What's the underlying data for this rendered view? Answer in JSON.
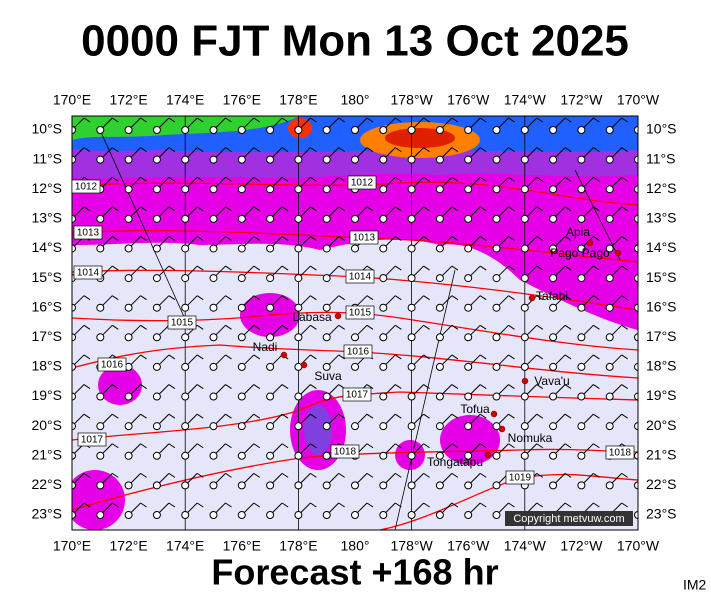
{
  "header": {
    "title": "0000 FJT Mon 13 Oct 2025"
  },
  "longitude_labels": [
    "170°E",
    "172°E",
    "174°E",
    "176°E",
    "178°E",
    "180°",
    "178°W",
    "176°W",
    "174°W",
    "172°W",
    "170°W"
  ],
  "latitude_labels": [
    "10°S",
    "11°S",
    "12°S",
    "13°S",
    "14°S",
    "15°S",
    "16°S",
    "17°S",
    "18°S",
    "19°S",
    "20°S",
    "21°S",
    "22°S",
    "23°S"
  ],
  "isobar_labels": [
    "1012",
    "1012",
    "1013",
    "1013",
    "1014",
    "1014",
    "1015",
    "1015",
    "1016",
    "1016",
    "1017",
    "1017",
    "1018",
    "1018",
    "1019"
  ],
  "places": [
    "Apia",
    "Pago Pago",
    "Tafahi",
    "Labasa",
    "Nadi",
    "Suva",
    "Vava'u",
    "Tofua",
    "Nomuka",
    "Tongatapu"
  ],
  "copyright": "Copyright metvuw.com",
  "footer": {
    "forecast": "Forecast +168 hr",
    "image_id": "IM2"
  }
}
